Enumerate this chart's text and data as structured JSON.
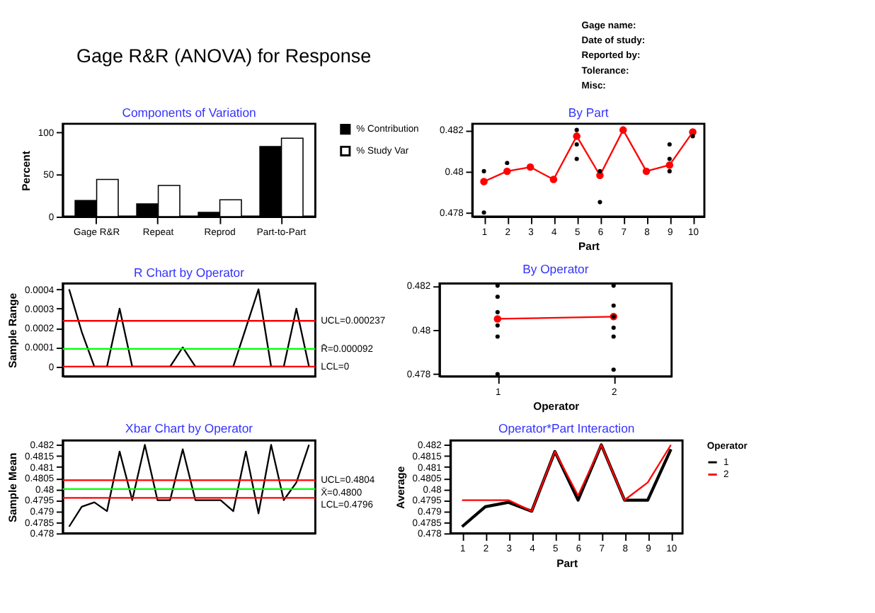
{
  "chart_data": [
    {
      "type": "other",
      "title": "Gage R&R (ANOVA) for Response",
      "annotations": [
        "Gage name:",
        "Date of study:",
        "Reported by:",
        "Tolerance:",
        "Misc:"
      ]
    },
    {
      "type": "bar",
      "title": "Components of Variation",
      "categories": [
        "Gage R&R",
        "Repeat",
        "Reprod",
        "Part-to-Part"
      ],
      "ylabel": "Percent",
      "ylim": [
        0,
        110
      ],
      "yticks": [
        0,
        50,
        100
      ],
      "legend": "right",
      "series": [
        {
          "name": "% Contribution",
          "color": "#000000",
          "values": [
            19,
            15,
            5,
            83
          ]
        },
        {
          "name": "% Study Var",
          "color": "#ffffff",
          "values": [
            44,
            37,
            20,
            93
          ]
        }
      ]
    },
    {
      "type": "line",
      "title": "By Part",
      "xlabel": "Part",
      "categories": [
        "1",
        "2",
        "3",
        "4",
        "5",
        "6",
        "7",
        "8",
        "9",
        "10"
      ],
      "ylim": [
        0.4778,
        0.4823
      ],
      "yticks": [
        0.478,
        0.48,
        0.482
      ],
      "marker": "circle",
      "series": [
        {
          "color": "#ff0000",
          "values": [
            0.4795,
            0.48,
            0.4802,
            0.4796,
            0.4817,
            0.4798,
            0.482,
            0.48,
            0.4803,
            0.4819
          ]
        },
        {
          "type": "scatter",
          "color": "#000000",
          "x": [
            "1",
            "1",
            "2",
            "5",
            "5",
            "5",
            "6",
            "6",
            "9",
            "9",
            "9",
            "10"
          ],
          "values": [
            0.48,
            0.478,
            0.4804,
            0.482,
            0.4813,
            0.4806,
            0.4785,
            0.48,
            0.4813,
            0.4806,
            0.48,
            0.4817
          ]
        }
      ]
    },
    {
      "type": "line",
      "title": "R Chart by Operator",
      "ylabel": "Sample Range",
      "categories": [
        null,
        null,
        null,
        null,
        null,
        null,
        null,
        null,
        null,
        null,
        null,
        null,
        null,
        null,
        null,
        null,
        null,
        null,
        null,
        null
      ],
      "tick_labels": "y",
      "ylim": [
        -5e-05,
        0.00043
      ],
      "yticks": [
        0,
        0.0001,
        0.0002,
        0.0003,
        0.0004
      ],
      "series": [
        {
          "color": "#000000",
          "values": [
            0.0004,
            0.00018,
            0,
            0,
            0.0003,
            0,
            0,
            0,
            0,
            0.0001,
            0,
            0,
            0,
            0,
            0.0002,
            0.0004,
            0,
            0,
            0.0003,
            0
          ]
        }
      ],
      "ref_lines": [
        {
          "axis": "y",
          "value": 0.000237,
          "label": "UCL=0.000237",
          "color": "#ff0000"
        },
        {
          "axis": "y",
          "value": 9.2e-05,
          "label": "R̄=0.000092",
          "color": "#00ff00"
        },
        {
          "axis": "y",
          "value": 0,
          "label": "LCL=0",
          "color": "#ff0000"
        }
      ]
    },
    {
      "type": "line",
      "title": "By Operator",
      "xlabel": "Operator",
      "categories": [
        "1",
        "2"
      ],
      "ylim": [
        0.4779,
        0.4821
      ],
      "yticks": [
        0.478,
        0.48,
        0.482
      ],
      "marker": "circle",
      "series": [
        {
          "color": "#ff0000",
          "values": [
            0.4805,
            0.4806
          ]
        },
        {
          "type": "scatter",
          "color": "#000000",
          "x": [
            "1",
            "1",
            "1",
            "1",
            "1",
            "1",
            "2",
            "2",
            "2",
            "2",
            "2",
            "2"
          ],
          "values": [
            0.482,
            0.4815,
            0.4808,
            0.4802,
            0.4797,
            0.478,
            0.482,
            0.4811,
            0.4806,
            0.4801,
            0.4797,
            0.4782
          ]
        }
      ]
    },
    {
      "type": "line",
      "title": "Xbar Chart by Operator",
      "ylabel": "Sample Mean",
      "categories": [
        null,
        null,
        null,
        null,
        null,
        null,
        null,
        null,
        null,
        null,
        null,
        null,
        null,
        null,
        null,
        null,
        null,
        null,
        null,
        null
      ],
      "tick_labels": "y",
      "ylim": [
        0.478,
        0.4822
      ],
      "yticks": [
        0.478,
        0.4785,
        0.479,
        0.4795,
        0.48,
        0.4805,
        0.481,
        0.4815,
        0.482
      ],
      "series": [
        {
          "color": "#000000",
          "values": [
            0.4783,
            0.4792,
            0.4794,
            0.479,
            0.4817,
            0.4795,
            0.482,
            0.4795,
            0.4795,
            0.4818,
            0.4795,
            0.4795,
            0.4795,
            0.479,
            0.4817,
            0.4789,
            0.482,
            0.4795,
            0.4803,
            0.482
          ]
        }
      ],
      "ref_lines": [
        {
          "axis": "y",
          "value": 0.4804,
          "label": "UCL=0.4804",
          "color": "#ff0000"
        },
        {
          "axis": "y",
          "value": 0.48,
          "label": "X̄=0.4800",
          "color": "#00ff00"
        },
        {
          "axis": "y",
          "value": 0.4796,
          "label": "LCL=0.4796",
          "color": "#ff0000"
        }
      ]
    },
    {
      "type": "line",
      "title": "Operator*Part Interaction",
      "xlabel": "Part",
      "ylabel": "Average",
      "legend_title": "Operator",
      "legend": "right",
      "categories": [
        "1",
        "2",
        "3",
        "4",
        "5",
        "6",
        "7",
        "8",
        "9",
        "10"
      ],
      "ylim": [
        0.478,
        0.4822
      ],
      "yticks": [
        0.478,
        0.4785,
        0.479,
        0.4795,
        0.48,
        0.4805,
        0.481,
        0.4815,
        0.482
      ],
      "series": [
        {
          "name": "1",
          "color": "#000000",
          "values": [
            0.4783,
            0.4792,
            0.4794,
            0.479,
            0.4817,
            0.4795,
            0.482,
            0.4795,
            0.4795,
            0.4818
          ]
        },
        {
          "name": "2",
          "color": "#ff0000",
          "values": [
            0.4795,
            0.4795,
            0.4795,
            0.479,
            0.4817,
            0.4797,
            0.482,
            0.4795,
            0.4803,
            0.482
          ]
        }
      ]
    }
  ]
}
